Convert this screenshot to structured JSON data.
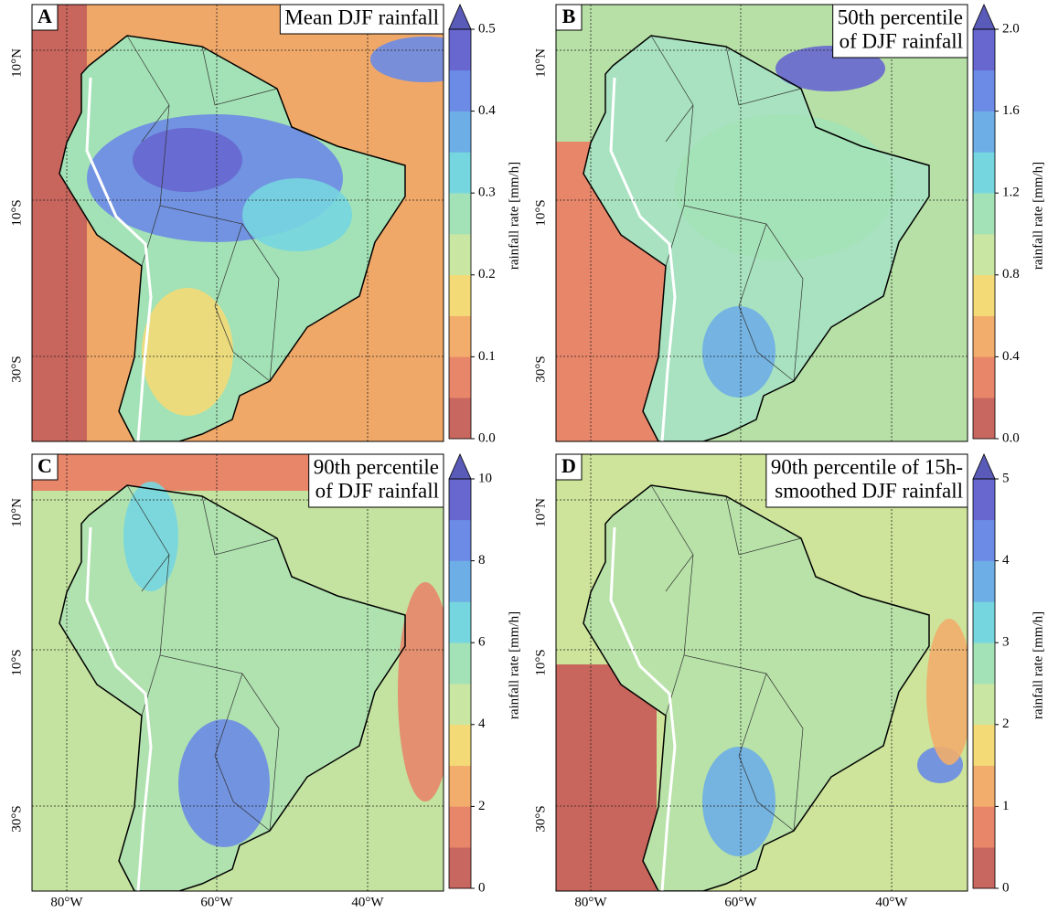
{
  "panels": [
    {
      "letter": "A",
      "title_lines": [
        "Mean DJF rainfall"
      ],
      "colorbar": {
        "label": "rainfall rate [mm/h]",
        "lim": [
          0,
          0.5
        ],
        "ticks": [
          {
            "value": 0,
            "label": "0.0"
          },
          0.1,
          0.2,
          0.3,
          0.4,
          0.5
        ]
      }
    },
    {
      "letter": "B",
      "title_lines": [
        "50th percentile",
        "of DJF rainfall"
      ],
      "colorbar": {
        "label": "rainfall rate [mm/h]",
        "lim": [
          0,
          2
        ],
        "ticks": [
          {
            "value": 0,
            "label": "0.0"
          },
          0.4,
          0.8,
          1.2,
          1.6,
          {
            "value": 2,
            "label": "2.0"
          }
        ]
      }
    },
    {
      "letter": "C",
      "title_lines": [
        "90th percentile",
        "of DJF rainfall"
      ],
      "colorbar": {
        "label": "rainfall rate [mm/h]",
        "lim": [
          0,
          10
        ],
        "ticks": [
          0,
          2,
          4,
          6,
          8,
          10
        ]
      }
    },
    {
      "letter": "D",
      "title_lines": [
        "90th percentile of 15h-",
        "smoothed DJF rainfall"
      ],
      "colorbar": {
        "label": "rainfall rate [mm/h]",
        "lim": [
          0,
          5
        ],
        "ticks": [
          0,
          1,
          2,
          3,
          4,
          5
        ]
      }
    }
  ],
  "colorbar_colors": [
    "#c8675f",
    "#e8866a",
    "#f2ad6c",
    "#f4da76",
    "#c9e6a2",
    "#a3e2b6",
    "#76d6e0",
    "#6eaee6",
    "#6b8be6",
    "#6767cf"
  ],
  "extend_color": "#5a5ab8",
  "lat_ticks": [
    "10°N",
    "10°S",
    "30°S"
  ],
  "lon_ticks": [
    "80°W",
    "60°W",
    "40°W"
  ]
}
